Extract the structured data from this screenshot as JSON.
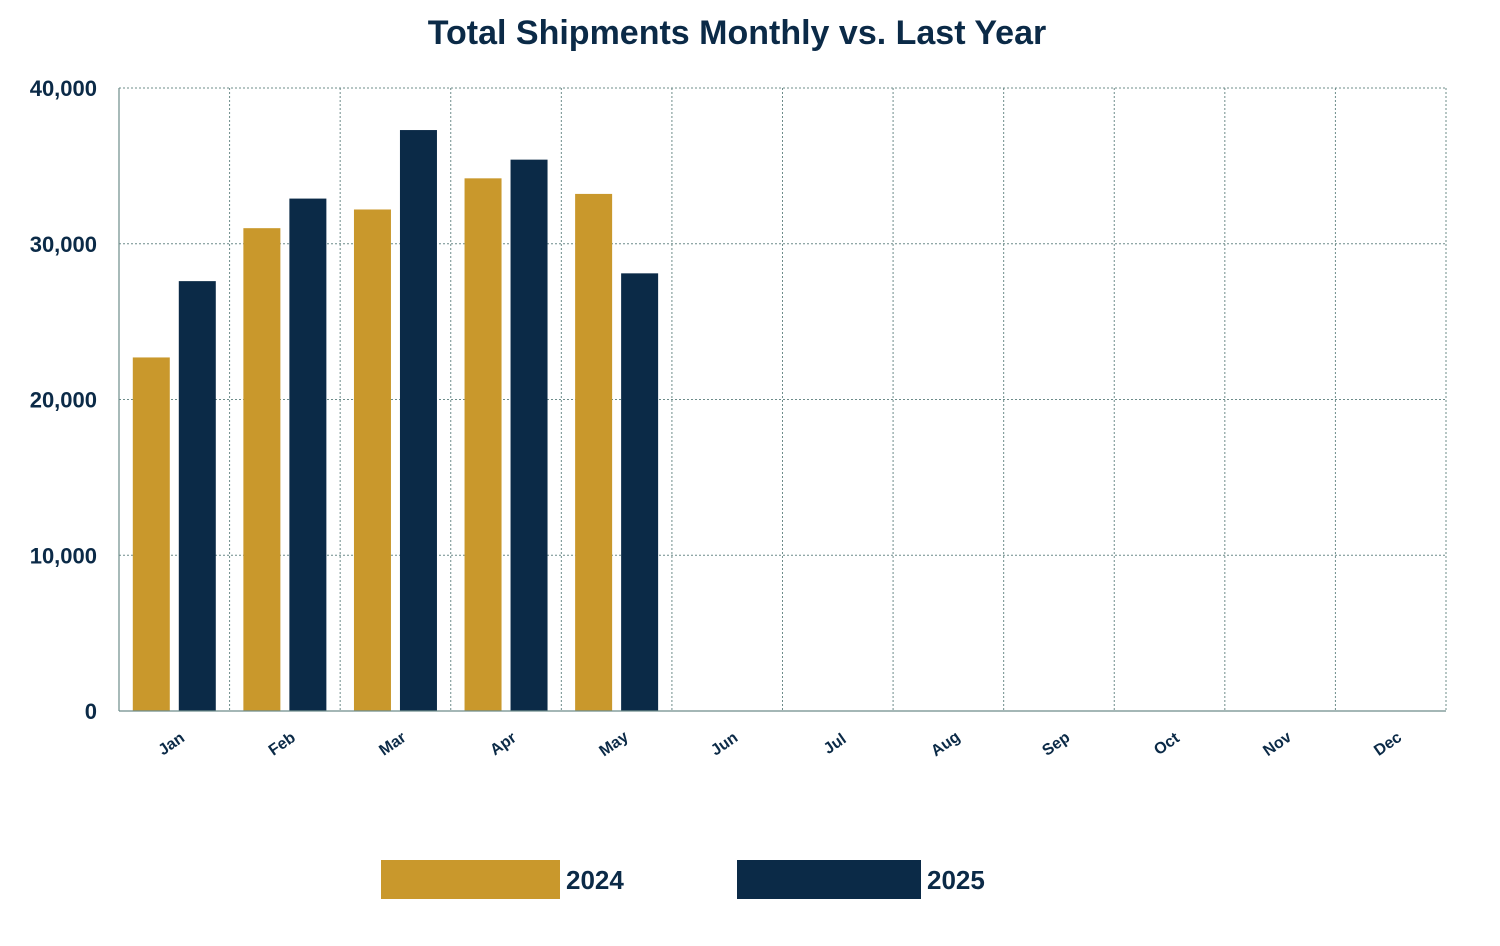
{
  "chart_data": {
    "type": "bar",
    "title": "Total Shipments Monthly vs. Last Year",
    "categories": [
      "Jan",
      "Feb",
      "Mar",
      "Apr",
      "May",
      "Jun",
      "Jul",
      "Aug",
      "Sep",
      "Oct",
      "Nov",
      "Dec"
    ],
    "series": [
      {
        "name": "2024",
        "color": "#c9982c",
        "values": [
          22700,
          31000,
          32200,
          34200,
          33200,
          null,
          null,
          null,
          null,
          null,
          null,
          null
        ]
      },
      {
        "name": "2025",
        "color": "#0b2a47",
        "values": [
          27600,
          32900,
          37300,
          35400,
          28100,
          null,
          null,
          null,
          null,
          null,
          null,
          null
        ]
      }
    ],
    "ylim": [
      0,
      40000
    ],
    "yticks": [
      0,
      10000,
      20000,
      30000,
      40000
    ],
    "ytick_labels": [
      "0",
      "10,000",
      "20,000",
      "30,000",
      "40,000"
    ],
    "xlabel": "",
    "ylabel": "",
    "grid": true,
    "legend_position": "bottom"
  }
}
